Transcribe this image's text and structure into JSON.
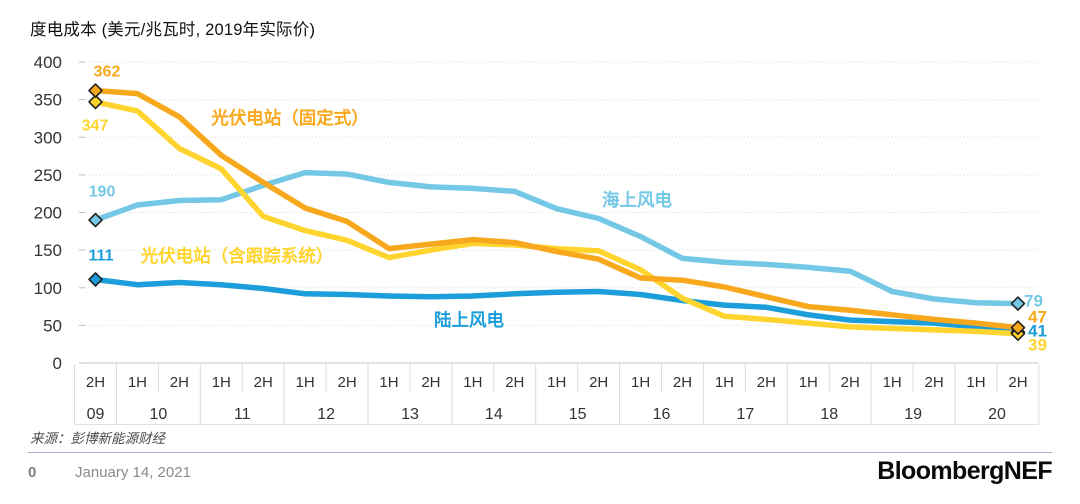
{
  "title": "度电成本 (美元/兆瓦时, 2019年实际价)",
  "source": "来源：彭博新能源财经",
  "footer": {
    "page_number": "0",
    "date": "January 14, 2021",
    "logo": "BloombergNEF"
  },
  "chart_data": {
    "type": "line",
    "title": "度电成本 (美元/兆瓦时, 2019年实际价)",
    "ylabel": "美元/兆瓦时",
    "ylim": [
      0,
      400
    ],
    "yticks": [
      400,
      350,
      300,
      250,
      200,
      150,
      100,
      50,
      0
    ],
    "grid": "horizontal-dotted",
    "legend_position": "inline-labels",
    "half_labels": [
      "2H",
      "1H",
      "2H",
      "1H",
      "2H",
      "1H",
      "2H",
      "1H",
      "2H",
      "1H",
      "2H",
      "1H",
      "2H",
      "1H",
      "2H",
      "1H",
      "2H",
      "1H",
      "2H",
      "1H",
      "2H",
      "1H",
      "2H"
    ],
    "year_labels": [
      "09",
      "10",
      "11",
      "12",
      "13",
      "14",
      "15",
      "16",
      "17",
      "18",
      "19",
      "20"
    ],
    "x_categories": [
      "2H09",
      "1H10",
      "2H10",
      "1H11",
      "2H11",
      "1H12",
      "2H12",
      "1H13",
      "2H13",
      "1H14",
      "2H14",
      "1H15",
      "2H15",
      "1H16",
      "2H16",
      "1H17",
      "2H17",
      "1H18",
      "2H18",
      "1H19",
      "2H19",
      "1H20",
      "2H20"
    ],
    "series": [
      {
        "id": "pv-fixed",
        "name": "光伏电站（固定式）",
        "color": "#F7A81D",
        "start_value": 362,
        "end_value": 47,
        "values": [
          362,
          358,
          327,
          276,
          240,
          206,
          188,
          152,
          158,
          164,
          160,
          148,
          138,
          113,
          110,
          101,
          88,
          75,
          70,
          64,
          58,
          53,
          47
        ]
      },
      {
        "id": "pv-tracking",
        "name": "光伏电站（含跟踪系统）",
        "color": "#FFD42E",
        "start_value": 347,
        "end_value": 39,
        "values": [
          347,
          335,
          285,
          258,
          195,
          176,
          163,
          140,
          150,
          159,
          157,
          152,
          149,
          124,
          86,
          62,
          58,
          53,
          48,
          46,
          44,
          42,
          39
        ]
      },
      {
        "id": "offshore-wind",
        "name": "海上风电",
        "color": "#74C8E6",
        "start_value": 190,
        "end_value": 79,
        "values": [
          190,
          210,
          216,
          217,
          236,
          253,
          251,
          240,
          234,
          232,
          228,
          205,
          192,
          168,
          139,
          134,
          131,
          127,
          122,
          95,
          85,
          80,
          79
        ]
      },
      {
        "id": "onshore-wind",
        "name": "陆上风电",
        "color": "#1B9EDA",
        "start_value": 111,
        "end_value": 41,
        "values": [
          111,
          104,
          107,
          104,
          99,
          92,
          91,
          89,
          88,
          89,
          92,
          94,
          95,
          91,
          83,
          77,
          74,
          64,
          57,
          55,
          53,
          48,
          41
        ]
      }
    ]
  }
}
